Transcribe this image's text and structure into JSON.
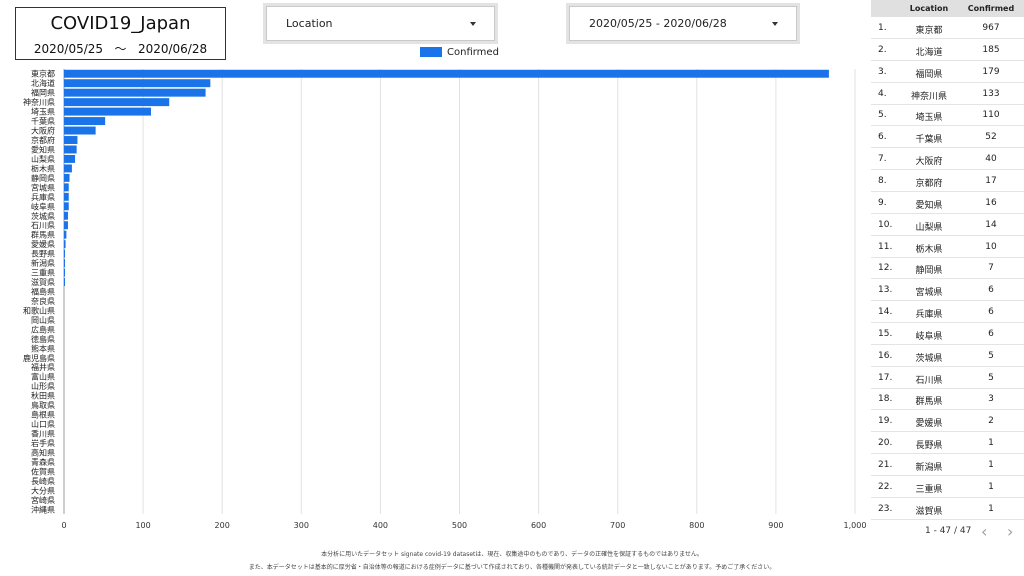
{
  "header": {
    "title": "COVID19_Japan",
    "date_start": "2020/05/25",
    "date_separator": "〜",
    "date_end": "2020/06/28"
  },
  "filters": {
    "location_label": "Location",
    "date_range_label": "2020/05/25 - 2020/06/28"
  },
  "chart_data": {
    "type": "bar",
    "orientation": "horizontal",
    "title": "",
    "xlabel": "",
    "ylabel": "",
    "xlim": [
      0,
      1000
    ],
    "x_ticks": [
      "0",
      "100",
      "200",
      "300",
      "400",
      "500",
      "600",
      "700",
      "800",
      "900",
      "1,000"
    ],
    "grid": true,
    "legend_position": "top",
    "color": "#1a73e8",
    "series": [
      {
        "name": "Confirmed"
      }
    ],
    "categories": [
      "東京都",
      "北海道",
      "福岡県",
      "神奈川県",
      "埼玉県",
      "千葉県",
      "大阪府",
      "京都府",
      "愛知県",
      "山梨県",
      "栃木県",
      "静岡県",
      "宮城県",
      "兵庫県",
      "岐阜県",
      "茨城県",
      "石川県",
      "群馬県",
      "愛媛県",
      "長野県",
      "新潟県",
      "三重県",
      "滋賀県",
      "福島県",
      "奈良県",
      "和歌山県",
      "岡山県",
      "広島県",
      "徳島県",
      "熊本県",
      "鹿児島県",
      "福井県",
      "富山県",
      "山形県",
      "秋田県",
      "鳥取県",
      "島根県",
      "山口県",
      "香川県",
      "岩手県",
      "高知県",
      "青森県",
      "佐賀県",
      "長崎県",
      "大分県",
      "宮崎県",
      "沖縄県"
    ],
    "values": [
      967,
      185,
      179,
      133,
      110,
      52,
      40,
      17,
      16,
      14,
      10,
      7,
      6,
      6,
      6,
      5,
      5,
      3,
      2,
      1,
      1,
      1,
      1,
      0,
      0,
      0,
      0,
      0,
      0,
      0,
      0,
      0,
      0,
      0,
      0,
      0,
      0,
      0,
      0,
      0,
      0,
      0,
      0,
      0,
      0,
      0,
      0
    ]
  },
  "table": {
    "col_location": "Location",
    "col_confirmed": "Confirmed",
    "rows": [
      {
        "idx": "1.",
        "loc": "東京都",
        "conf": "967"
      },
      {
        "idx": "2.",
        "loc": "北海道",
        "conf": "185"
      },
      {
        "idx": "3.",
        "loc": "福岡県",
        "conf": "179"
      },
      {
        "idx": "4.",
        "loc": "神奈川県",
        "conf": "133"
      },
      {
        "idx": "5.",
        "loc": "埼玉県",
        "conf": "110"
      },
      {
        "idx": "6.",
        "loc": "千葉県",
        "conf": "52"
      },
      {
        "idx": "7.",
        "loc": "大阪府",
        "conf": "40"
      },
      {
        "idx": "8.",
        "loc": "京都府",
        "conf": "17"
      },
      {
        "idx": "9.",
        "loc": "愛知県",
        "conf": "16"
      },
      {
        "idx": "10.",
        "loc": "山梨県",
        "conf": "14"
      },
      {
        "idx": "11.",
        "loc": "栃木県",
        "conf": "10"
      },
      {
        "idx": "12.",
        "loc": "静岡県",
        "conf": "7"
      },
      {
        "idx": "13.",
        "loc": "宮城県",
        "conf": "6"
      },
      {
        "idx": "14.",
        "loc": "兵庫県",
        "conf": "6"
      },
      {
        "idx": "15.",
        "loc": "岐阜県",
        "conf": "6"
      },
      {
        "idx": "16.",
        "loc": "茨城県",
        "conf": "5"
      },
      {
        "idx": "17.",
        "loc": "石川県",
        "conf": "5"
      },
      {
        "idx": "18.",
        "loc": "群馬県",
        "conf": "3"
      },
      {
        "idx": "19.",
        "loc": "愛媛県",
        "conf": "2"
      },
      {
        "idx": "20.",
        "loc": "長野県",
        "conf": "1"
      },
      {
        "idx": "21.",
        "loc": "新潟県",
        "conf": "1"
      },
      {
        "idx": "22.",
        "loc": "三重県",
        "conf": "1"
      },
      {
        "idx": "23.",
        "loc": "滋賀県",
        "conf": "1"
      }
    ]
  },
  "pager": {
    "range_text": "1 - 47 / 47",
    "prev_icon": "chevron-left-icon",
    "next_icon": "chevron-right-icon",
    "prev_glyph": "‹",
    "next_glyph": "›"
  },
  "footer": {
    "line1": "本分析に用いたデータセット signate covid-19 datasetは、現在、収集途中のものであり、データの正確性を保証するものではありません。",
    "line2": "また、本データセットは基本的に厚労省・自治体等の報道における症例データに基づいて作成されており、各種機関が発表している統計データと一致しないことがあります。予めご了承ください。"
  }
}
